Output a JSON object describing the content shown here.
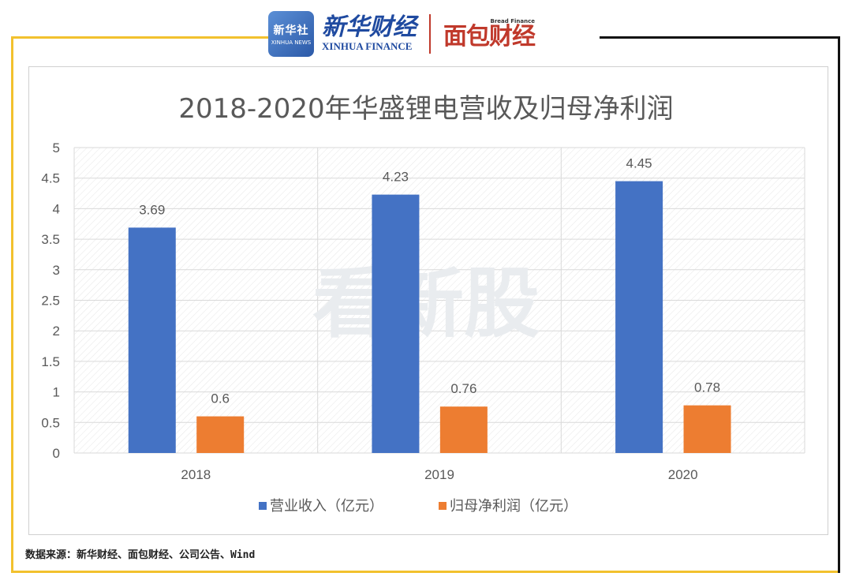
{
  "header": {
    "xinhua_badge_cn": "新华社",
    "xinhua_badge_en": "XINHUA NEWS",
    "xinhua_finance_cn": "新华财经",
    "xinhua_finance_en": "XINHUA FINANCE",
    "bread_small": "Bread Finance",
    "bread_cn": "面包财经"
  },
  "watermark": "看新股",
  "footer": {
    "source": "数据来源：新华财经、面包财经、公司公告、Wind"
  },
  "colors": {
    "revenue": "#4472C4",
    "profit": "#ED7D31",
    "frame": "#F2C12E",
    "grid": "#D9D9D9",
    "text": "#595959"
  },
  "chart_data": {
    "type": "bar",
    "title": "2018-2020年华盛锂电营收及归母净利润",
    "categories": [
      "2018",
      "2019",
      "2020"
    ],
    "series": [
      {
        "name": "营业收入（亿元）",
        "values": [
          3.69,
          4.23,
          4.45
        ]
      },
      {
        "name": "归母净利润（亿元）",
        "values": [
          0.6,
          0.76,
          0.78
        ]
      }
    ],
    "ylim": [
      0,
      5
    ],
    "yticks": [
      "0",
      "0.5",
      "1",
      "1.5",
      "2",
      "2.5",
      "3",
      "3.5",
      "4",
      "4.5",
      "5"
    ],
    "grid": true,
    "legend": "bottom"
  }
}
